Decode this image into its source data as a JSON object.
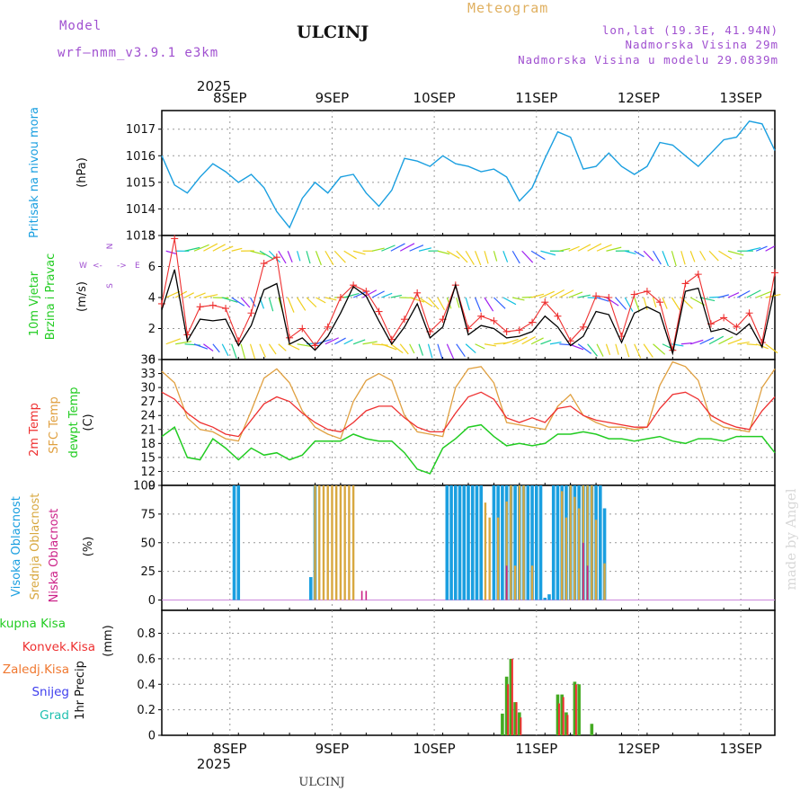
{
  "header": {
    "model_label": "Model",
    "model_name": "wrf—nmm_v3.9.1 e3km",
    "station": "ULCINJ",
    "meteogram_label": "Meteogram",
    "lonlat": "lon,lat (19.3E, 41.94N)",
    "elevation": "Nadmorska Visina 29m",
    "model_elevation": "Nadmorska Visina u modelu 29.0839m",
    "credit": "made by Angel",
    "footer_station": "ULCINJ"
  },
  "time_axis": {
    "year": "2025",
    "day_labels": [
      "8SEP",
      "9SEP",
      "10SEP",
      "11SEP",
      "12SEP",
      "13SEP"
    ]
  },
  "colors": {
    "pressure": "#1a9fe0",
    "wind_speed": "#000000",
    "wind_gust": "#ee3030",
    "temp2m": "#ee3030",
    "sfc_temp": "#e0a040",
    "dewpt": "#22cc22",
    "high_cloud": "#1a9fe0",
    "mid_cloud": "#d8a840",
    "low_cloud": "#cc2288",
    "precip_total": "#44aa22",
    "precip_conv": "#ee3030"
  },
  "chart_data": [
    {
      "type": "line",
      "panel": "pressure",
      "ylabel": "Pritisak na nivou mora",
      "unit": "(hPa)",
      "ylim": [
        1013,
        1017.7
      ],
      "yticks": [
        1013,
        1014,
        1015,
        1016,
        1017
      ],
      "grid": true,
      "x": [
        0,
        3,
        6,
        9,
        12,
        15,
        18,
        21,
        24,
        27,
        30,
        33,
        36,
        39,
        42,
        45,
        48,
        51,
        54,
        57,
        60,
        63,
        66,
        69,
        72,
        75,
        78,
        81,
        84,
        87,
        90,
        93,
        96,
        99,
        102,
        105,
        108,
        111,
        114,
        117,
        120,
        123,
        126,
        129,
        132,
        135,
        138,
        141,
        144
      ],
      "series": [
        {
          "name": "Pritisak na nivou mora",
          "values": [
            1016.0,
            1014.9,
            1014.6,
            1015.2,
            1015.7,
            1015.4,
            1015.0,
            1015.3,
            1014.8,
            1013.9,
            1013.3,
            1014.4,
            1015.0,
            1014.6,
            1015.2,
            1015.3,
            1014.6,
            1014.1,
            1014.7,
            1015.9,
            1015.8,
            1015.6,
            1016.0,
            1015.7,
            1015.6,
            1015.4,
            1015.5,
            1015.2,
            1014.3,
            1014.8,
            1015.9,
            1016.9,
            1016.7,
            1015.5,
            1015.6,
            1016.1,
            1015.6,
            1015.3,
            1015.6,
            1016.5,
            1016.4,
            1016.0,
            1015.6,
            1016.1,
            1016.6,
            1016.7,
            1017.3,
            1017.2,
            1016.2
          ]
        }
      ]
    },
    {
      "type": "line",
      "panel": "wind",
      "ylabel": "10m Vjetar",
      "ylabel2": "Brzina i Pravac",
      "unit": "(m/s)",
      "ylim": [
        0,
        8
      ],
      "yticks": [
        0,
        2,
        4,
        6,
        8
      ],
      "grid": true,
      "x": [
        0,
        3,
        6,
        9,
        12,
        15,
        18,
        21,
        24,
        27,
        30,
        33,
        36,
        39,
        42,
        45,
        48,
        51,
        54,
        57,
        60,
        63,
        66,
        69,
        72,
        75,
        78,
        81,
        84,
        87,
        90,
        93,
        96,
        99,
        102,
        105,
        108,
        111,
        114,
        117,
        120,
        123,
        126,
        129,
        132,
        135,
        138,
        141,
        144
      ],
      "series": [
        {
          "name": "speed",
          "values": [
            3.2,
            5.8,
            1.2,
            2.6,
            2.5,
            2.6,
            0.9,
            2.2,
            4.5,
            4.9,
            1.0,
            1.4,
            0.6,
            1.5,
            3.0,
            4.7,
            4.1,
            2.5,
            1.0,
            2.1,
            3.6,
            1.4,
            2.1,
            4.8,
            1.6,
            2.2,
            2.0,
            1.4,
            1.5,
            1.8,
            2.8,
            2.1,
            0.9,
            1.5,
            3.1,
            2.9,
            1.1,
            3.0,
            3.4,
            3.0,
            0.4,
            4.4,
            4.6,
            1.8,
            2.0,
            1.6,
            2.3,
            0.8,
            4.6
          ]
        },
        {
          "name": "gust",
          "values": [
            3.6,
            7.8,
            1.6,
            3.4,
            3.5,
            3.3,
            1.2,
            3.0,
            6.2,
            6.6,
            1.4,
            2.0,
            0.9,
            2.1,
            4.0,
            4.8,
            4.4,
            3.1,
            1.3,
            2.6,
            4.3,
            1.8,
            2.6,
            4.8,
            2.0,
            2.8,
            2.5,
            1.8,
            1.9,
            2.4,
            3.7,
            2.8,
            1.2,
            2.1,
            4.1,
            4.0,
            1.5,
            4.2,
            4.4,
            3.7,
            0.6,
            4.9,
            5.5,
            2.3,
            2.7,
            2.1,
            3.0,
            1.1,
            5.6
          ]
        }
      ]
    },
    {
      "type": "line",
      "panel": "temperature",
      "ylabel": "2m Temp",
      "ylabel2": "SFC Temp",
      "ylabel3": "dewpt Temp",
      "unit": "(C)",
      "ylim": [
        9,
        36
      ],
      "yticks": [
        9,
        12,
        15,
        18,
        21,
        24,
        27,
        30,
        33,
        36
      ],
      "grid": true,
      "x": [
        0,
        3,
        6,
        9,
        12,
        15,
        18,
        21,
        24,
        27,
        30,
        33,
        36,
        39,
        42,
        45,
        48,
        51,
        54,
        57,
        60,
        63,
        66,
        69,
        72,
        75,
        78,
        81,
        84,
        87,
        90,
        93,
        96,
        99,
        102,
        105,
        108,
        111,
        114,
        117,
        120,
        123,
        126,
        129,
        132,
        135,
        138,
        141,
        144
      ],
      "series": [
        {
          "name": "2m Temp",
          "values": [
            29.0,
            27.5,
            24.5,
            22.5,
            21.5,
            20.0,
            19.5,
            23.0,
            26.5,
            28.0,
            27.0,
            24.5,
            22.5,
            21.0,
            20.5,
            22.5,
            25.0,
            26.0,
            26.0,
            23.5,
            21.5,
            20.5,
            20.5,
            24.5,
            28.0,
            29.0,
            27.5,
            23.5,
            22.5,
            23.5,
            22.5,
            25.5,
            26.0,
            24.0,
            23.0,
            22.5,
            22.0,
            21.5,
            21.5,
            25.5,
            28.5,
            29.0,
            27.5,
            24.0,
            22.5,
            21.5,
            21.0,
            25.0,
            28.0
          ]
        },
        {
          "name": "SFC Temp",
          "values": [
            33.5,
            31.0,
            23.5,
            21.0,
            20.5,
            19.0,
            18.5,
            25.0,
            32.0,
            34.0,
            31.0,
            25.0,
            21.5,
            20.0,
            19.0,
            27.0,
            31.5,
            33.0,
            31.5,
            24.0,
            20.5,
            20.0,
            19.5,
            30.0,
            34.0,
            34.5,
            31.0,
            22.5,
            22.0,
            21.5,
            21.0,
            26.0,
            28.5,
            24.0,
            22.5,
            21.5,
            21.5,
            21.0,
            21.5,
            30.5,
            35.5,
            34.5,
            31.5,
            23.0,
            21.5,
            21.0,
            20.5,
            30.0,
            34.0
          ]
        },
        {
          "name": "dewpt Temp",
          "values": [
            19.5,
            21.5,
            15.0,
            14.5,
            19.0,
            17.0,
            14.5,
            17.0,
            15.5,
            16.0,
            14.5,
            15.5,
            18.5,
            18.5,
            18.5,
            20.0,
            19.0,
            18.5,
            18.5,
            16.0,
            12.5,
            11.5,
            17.0,
            19.0,
            21.5,
            22.0,
            19.5,
            17.5,
            18.0,
            17.5,
            18.0,
            20.0,
            20.0,
            20.5,
            20.0,
            19.0,
            19.0,
            18.5,
            19.0,
            19.5,
            18.5,
            18.0,
            19.0,
            19.0,
            18.5,
            19.5,
            19.5,
            19.5,
            16.0
          ]
        }
      ]
    },
    {
      "type": "bar",
      "panel": "cloud",
      "ylabel": "Visoka Oblacnost",
      "ylabel2": "Srednja Oblacnost",
      "ylabel3": "Niska Oblacnost",
      "unit": "(%)",
      "ylim": [
        -9,
        100
      ],
      "yticks": [
        0,
        25,
        50,
        75,
        100
      ],
      "grid": true,
      "series": [
        {
          "name": "Visoka Oblacnost",
          "bars": [
            [
              17,
              100
            ],
            [
              18,
              100
            ],
            [
              35,
              20
            ],
            [
              36,
              100
            ],
            [
              67,
              100
            ],
            [
              68,
              100
            ],
            [
              69,
              100
            ],
            [
              70,
              100
            ],
            [
              71,
              100
            ],
            [
              72,
              100
            ],
            [
              73,
              100
            ],
            [
              74,
              100
            ],
            [
              75,
              100
            ],
            [
              78,
              100
            ],
            [
              79,
              100
            ],
            [
              80,
              100
            ],
            [
              81,
              100
            ],
            [
              82,
              100
            ],
            [
              83,
              100
            ],
            [
              84,
              100
            ],
            [
              85,
              100
            ],
            [
              86,
              100
            ],
            [
              87,
              100
            ],
            [
              88,
              100
            ],
            [
              89,
              100
            ],
            [
              90,
              2
            ],
            [
              91,
              5
            ],
            [
              92,
              100
            ],
            [
              93,
              100
            ],
            [
              94,
              100
            ],
            [
              95,
              100
            ],
            [
              96,
              100
            ],
            [
              97,
              100
            ],
            [
              98,
              100
            ],
            [
              99,
              100
            ],
            [
              100,
              100
            ],
            [
              101,
              100
            ],
            [
              102,
              100
            ],
            [
              103,
              100
            ],
            [
              104,
              80
            ]
          ]
        },
        {
          "name": "Srednja Oblacnost",
          "bars": [
            [
              36,
              100
            ],
            [
              37,
              100
            ],
            [
              38,
              100
            ],
            [
              39,
              100
            ],
            [
              40,
              100
            ],
            [
              41,
              100
            ],
            [
              42,
              100
            ],
            [
              43,
              100
            ],
            [
              44,
              100
            ],
            [
              45,
              100
            ],
            [
              76,
              85
            ],
            [
              77,
              72
            ],
            [
              79,
              72
            ],
            [
              81,
              86
            ],
            [
              82,
              100
            ],
            [
              83,
              30
            ],
            [
              84,
              100
            ],
            [
              85,
              100
            ],
            [
              87,
              30
            ],
            [
              94,
              95
            ],
            [
              95,
              72
            ],
            [
              96,
              100
            ],
            [
              97,
              90
            ],
            [
              98,
              80
            ],
            [
              99,
              100
            ],
            [
              100,
              100
            ],
            [
              101,
              100
            ],
            [
              102,
              70
            ],
            [
              104,
              32
            ]
          ]
        },
        {
          "name": "Niska Oblacnost",
          "bars": [
            [
              47,
              8
            ],
            [
              48,
              8
            ],
            [
              81,
              30
            ],
            [
              99,
              50
            ],
            [
              100,
              30
            ]
          ]
        }
      ]
    },
    {
      "type": "bar",
      "panel": "precip",
      "ylabel": "1hr Precip",
      "unit": "(mm)",
      "legend": [
        "Ukupna Kisa",
        "Konvek.Kisa",
        "Zaledj.Kisa",
        "Snijeg",
        "Grad"
      ],
      "ylim": [
        0,
        0.98
      ],
      "yticks": [
        0,
        0.2,
        0.4,
        0.6,
        0.8
      ],
      "grid": true,
      "series": [
        {
          "name": "Ukupna Kisa",
          "bars": [
            [
              80,
              0.17
            ],
            [
              81,
              0.46
            ],
            [
              82,
              0.6
            ],
            [
              83,
              0.26
            ],
            [
              84,
              0.18
            ],
            [
              93,
              0.32
            ],
            [
              94,
              0.32
            ],
            [
              95,
              0.18
            ],
            [
              97,
              0.42
            ],
            [
              98,
              0.4
            ],
            [
              101,
              0.09
            ]
          ]
        },
        {
          "name": "Konvek.Kisa",
          "bars": [
            [
              80,
              0.0
            ],
            [
              81,
              0.4
            ],
            [
              82,
              0.6
            ],
            [
              83,
              0.26
            ],
            [
              84,
              0.14
            ],
            [
              93,
              0.25
            ],
            [
              94,
              0.3
            ],
            [
              95,
              0.16
            ],
            [
              97,
              0.4
            ],
            [
              98,
              0.0
            ],
            [
              101,
              0.0
            ]
          ]
        }
      ]
    }
  ]
}
